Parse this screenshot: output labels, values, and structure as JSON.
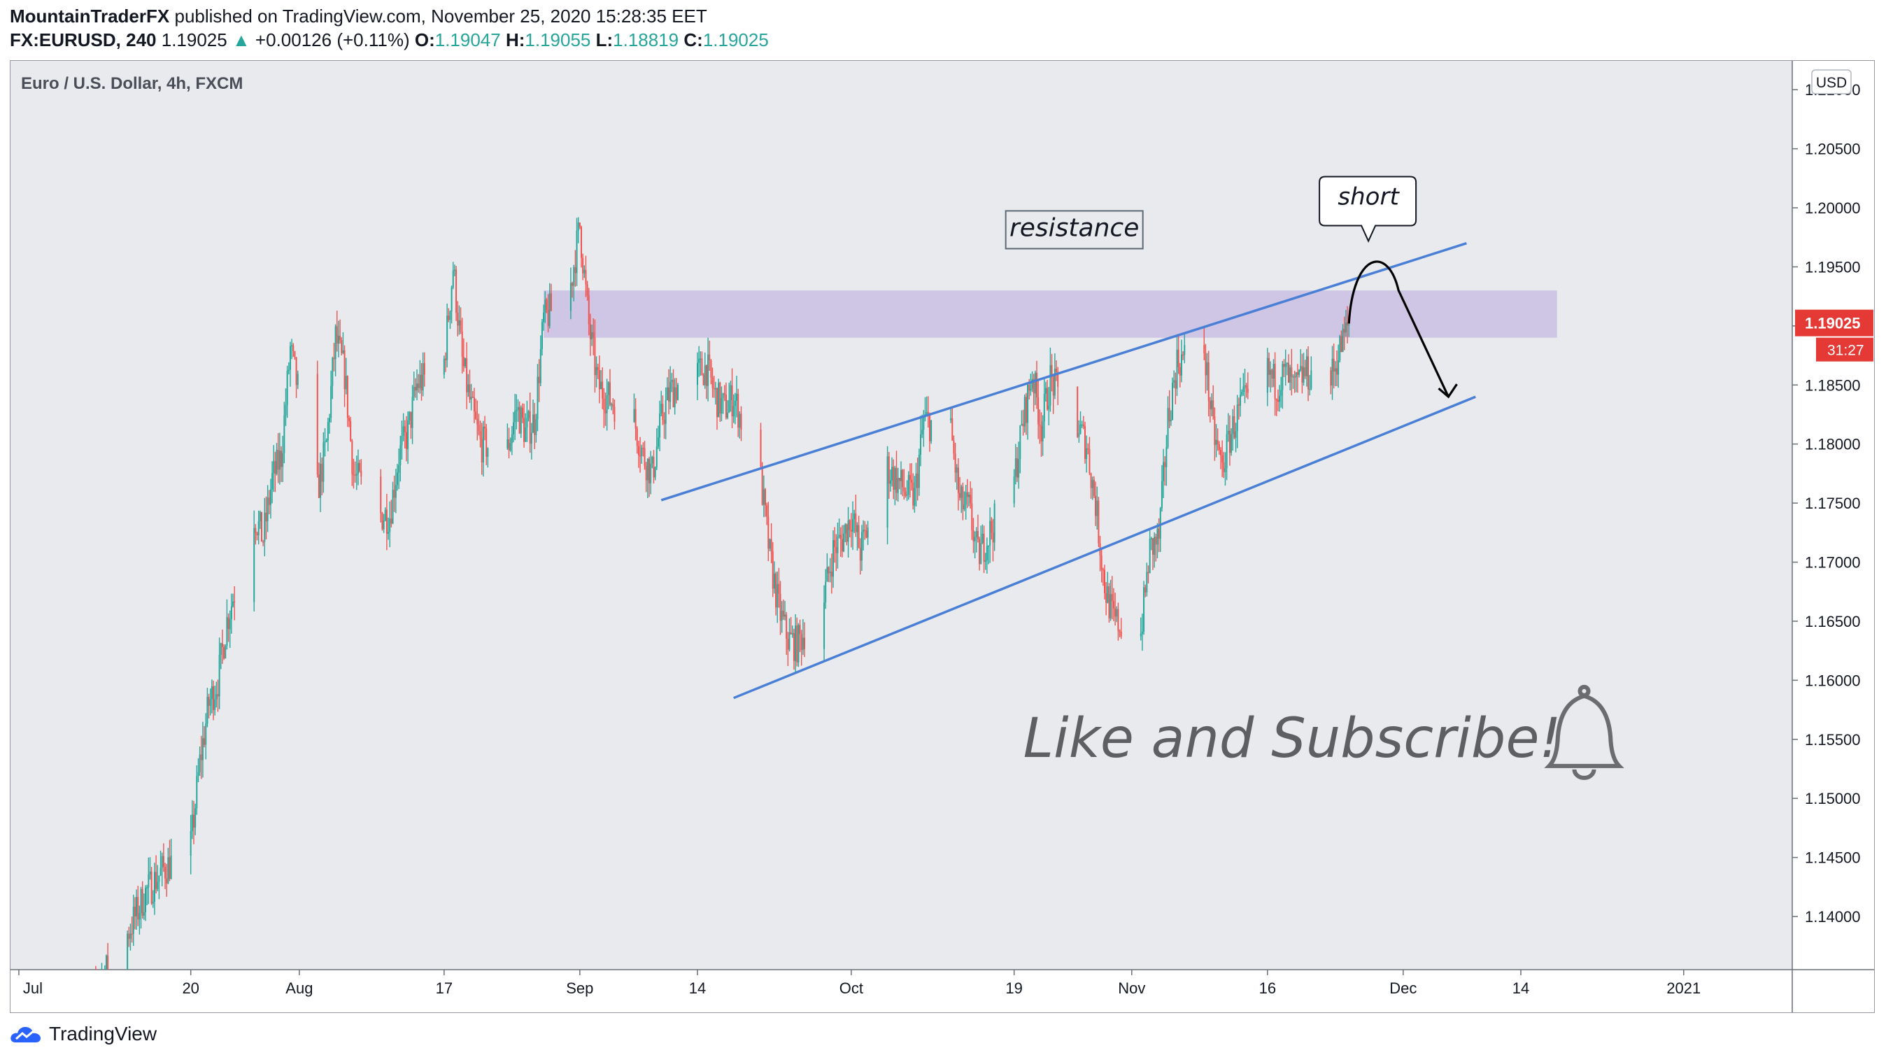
{
  "header": {
    "publisher": "MountainTraderFX",
    "published_text": "published on TradingView.com, November 25, 2020 15:28:35 EET",
    "symbol": "FX:EURUSD, 240",
    "last_price": "1.19025",
    "change": "+0.00126 (+0.11%)",
    "o_label": "O:",
    "o_value": "1.19047",
    "h_label": "H:",
    "h_value": "1.19055",
    "l_label": "L:",
    "l_value": "1.18819",
    "c_label": "C:",
    "c_value": "1.19025",
    "up_color": "#26a69a"
  },
  "chart_data": {
    "type": "candlestick",
    "title": "Euro / U.S. Dollar, 4h, FXCM",
    "currency": "USD",
    "ylim": [
      1.1355,
      1.2125
    ],
    "y_ticks": [
      "1.21000",
      "1.20500",
      "1.20000",
      "1.19500",
      "1.19000",
      "1.18500",
      "1.18000",
      "1.17500",
      "1.17000",
      "1.16500",
      "1.16000",
      "1.15500",
      "1.15000",
      "1.14500",
      "1.14000"
    ],
    "x_ticks": [
      "Jul",
      "20",
      "Aug",
      "17",
      "Sep",
      "14",
      "Oct",
      "19",
      "Nov",
      "16",
      "Dec",
      "14",
      "2021"
    ],
    "x_tick_dates": [
      "2020-07-01",
      "2020-07-20",
      "2020-08-01",
      "2020-08-17",
      "2020-09-01",
      "2020-09-14",
      "2020-10-01",
      "2020-10-19",
      "2020-11-01",
      "2020-11-16",
      "2020-12-01",
      "2020-12-14",
      "2021-01-01"
    ],
    "xlim": [
      "2020-06-30",
      "2021-01-13"
    ],
    "last_price_label": "1.19025",
    "countdown": "31:27",
    "colors": {
      "up": "#26a69a",
      "down": "#ef5350",
      "background": "#e9eaee",
      "trendline": "#4a7fd6",
      "zone": "#c5b8e0",
      "price_tag": "#e53935"
    },
    "price_path": [
      [
        "2020-07-08",
        1.13
      ],
      [
        "2020-07-10",
        1.1345
      ],
      [
        "2020-07-13",
        1.1385
      ],
      [
        "2020-07-15",
        1.142
      ],
      [
        "2020-07-17",
        1.144
      ],
      [
        "2020-07-20",
        1.146
      ],
      [
        "2020-07-21",
        1.153
      ],
      [
        "2020-07-22",
        1.158
      ],
      [
        "2020-07-23",
        1.16
      ],
      [
        "2020-07-24",
        1.165
      ],
      [
        "2020-07-27",
        1.174
      ],
      [
        "2020-07-28",
        1.172
      ],
      [
        "2020-07-29",
        1.177
      ],
      [
        "2020-07-30",
        1.179
      ],
      [
        "2020-07-31",
        1.188
      ],
      [
        "2020-08-03",
        1.176
      ],
      [
        "2020-08-04",
        1.18
      ],
      [
        "2020-08-05",
        1.189
      ],
      [
        "2020-08-06",
        1.186
      ],
      [
        "2020-08-07",
        1.1775
      ],
      [
        "2020-08-10",
        1.174
      ],
      [
        "2020-08-11",
        1.174
      ],
      [
        "2020-08-12",
        1.179
      ],
      [
        "2020-08-13",
        1.181
      ],
      [
        "2020-08-14",
        1.185
      ],
      [
        "2020-08-17",
        1.187
      ],
      [
        "2020-08-18",
        1.195
      ],
      [
        "2020-08-19",
        1.187
      ],
      [
        "2020-08-20",
        1.183
      ],
      [
        "2020-08-21",
        1.18
      ],
      [
        "2020-08-24",
        1.1795
      ],
      [
        "2020-08-25",
        1.183
      ],
      [
        "2020-08-26",
        1.181
      ],
      [
        "2020-08-27",
        1.182
      ],
      [
        "2020-08-28",
        1.1905
      ],
      [
        "2020-08-31",
        1.1935
      ],
      [
        "2020-09-01",
        1.1985
      ],
      [
        "2020-09-02",
        1.19
      ],
      [
        "2020-09-03",
        1.185
      ],
      [
        "2020-09-04",
        1.184
      ],
      [
        "2020-09-07",
        1.182
      ],
      [
        "2020-09-08",
        1.179
      ],
      [
        "2020-09-09",
        1.1775
      ],
      [
        "2020-09-10",
        1.182
      ],
      [
        "2020-09-11",
        1.1845
      ],
      [
        "2020-09-14",
        1.186
      ],
      [
        "2020-09-15",
        1.1865
      ],
      [
        "2020-09-16",
        1.184
      ],
      [
        "2020-09-17",
        1.183
      ],
      [
        "2020-09-18",
        1.184
      ],
      [
        "2020-09-21",
        1.177
      ],
      [
        "2020-09-22",
        1.1705
      ],
      [
        "2020-09-23",
        1.166
      ],
      [
        "2020-09-24",
        1.1635
      ],
      [
        "2020-09-25",
        1.163
      ],
      [
        "2020-09-28",
        1.167
      ],
      [
        "2020-09-29",
        1.171
      ],
      [
        "2020-09-30",
        1.172
      ],
      [
        "2020-10-01",
        1.174
      ],
      [
        "2020-10-02",
        1.171
      ],
      [
        "2020-10-05",
        1.178
      ],
      [
        "2020-10-06",
        1.177
      ],
      [
        "2020-10-07",
        1.176
      ],
      [
        "2020-10-08",
        1.1755
      ],
      [
        "2020-10-09",
        1.182
      ],
      [
        "2020-10-12",
        1.181
      ],
      [
        "2020-10-13",
        1.175
      ],
      [
        "2020-10-14",
        1.1745
      ],
      [
        "2020-10-15",
        1.1705
      ],
      [
        "2020-10-16",
        1.172
      ],
      [
        "2020-10-19",
        1.177
      ],
      [
        "2020-10-20",
        1.182
      ],
      [
        "2020-10-21",
        1.186
      ],
      [
        "2020-10-22",
        1.1815
      ],
      [
        "2020-10-23",
        1.1855
      ],
      [
        "2020-10-26",
        1.1815
      ],
      [
        "2020-10-27",
        1.18
      ],
      [
        "2020-10-28",
        1.175
      ],
      [
        "2020-10-29",
        1.168
      ],
      [
        "2020-10-30",
        1.165
      ],
      [
        "2020-11-02",
        1.164
      ],
      [
        "2020-11-03",
        1.171
      ],
      [
        "2020-11-04",
        1.172
      ],
      [
        "2020-11-05",
        1.182
      ],
      [
        "2020-11-06",
        1.187
      ],
      [
        "2020-11-09",
        1.188
      ],
      [
        "2020-11-10",
        1.181
      ],
      [
        "2020-11-11",
        1.178
      ],
      [
        "2020-11-12",
        1.181
      ],
      [
        "2020-11-13",
        1.183
      ],
      [
        "2020-11-16",
        1.186
      ],
      [
        "2020-11-17",
        1.185
      ],
      [
        "2020-11-18",
        1.186
      ],
      [
        "2020-11-19",
        1.1845
      ],
      [
        "2020-11-20",
        1.186
      ],
      [
        "2020-11-23",
        1.1855
      ],
      [
        "2020-11-24",
        1.188
      ],
      [
        "2020-11-25",
        1.1902
      ]
    ],
    "resistance_zone": {
      "from": "2020-08-28",
      "to": "2020-12-18",
      "low": 1.189,
      "high": 1.193
    },
    "trendlines": [
      {
        "x1": "2020-09-10",
        "y1": 1.17525,
        "x2": "2020-12-08",
        "y2": 1.197
      },
      {
        "x1": "2020-09-18",
        "y1": 1.1585,
        "x2": "2020-12-09",
        "y2": 1.184
      }
    ],
    "annotations": {
      "resistance_label": "resistance",
      "short_label": "short",
      "cta_text": "Like and Subscribe!"
    }
  },
  "footer": {
    "brand": "TradingView",
    "logo_color": "#2962ff"
  }
}
